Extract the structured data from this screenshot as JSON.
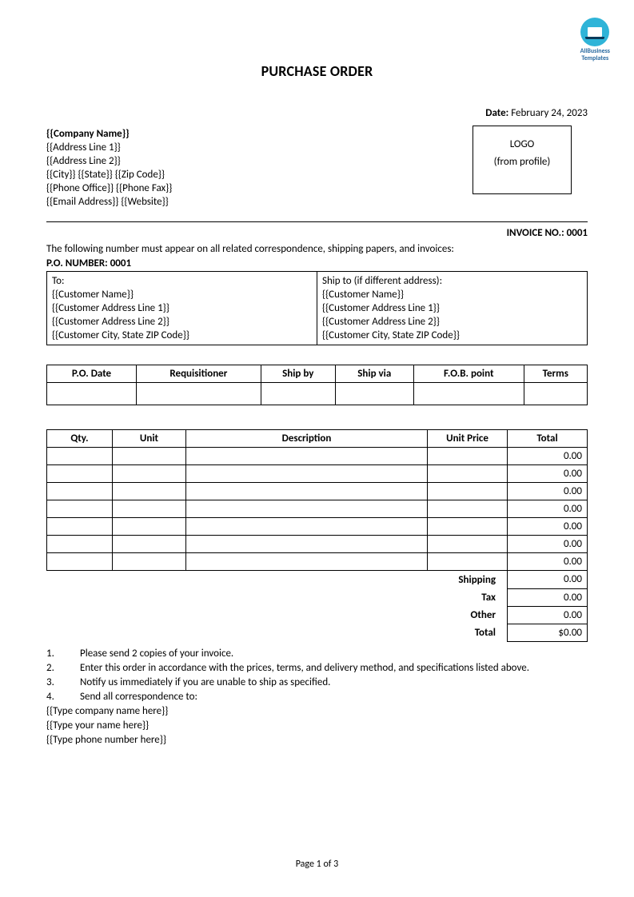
{
  "brand": {
    "line1": "AllBusiness",
    "line2": "Templates"
  },
  "title": "PURCHASE ORDER",
  "date": {
    "label": "Date:",
    "value": "February 24, 2023"
  },
  "company": {
    "name": "{{Company Name}}",
    "addr1": "{{Address Line 1}}",
    "addr2": "{{Address Line 2}}",
    "city_state_zip": "{{City}} {{State}} {{Zip Code}}",
    "phones": "{{Phone Office}} {{Phone Fax}}",
    "email_web": "{{Email Address}} {{Website}}"
  },
  "logo_box": {
    "line1": "LOGO",
    "line2": "(from profile)"
  },
  "invoice_no": {
    "label": "INVOICE NO.: 0001"
  },
  "po_instruction": "The following number must appear on all related correspondence, shipping papers, and invoices:",
  "po_number": "P.O. NUMBER: 0001",
  "to_block": {
    "header": "To:",
    "name": "{{Customer Name}}",
    "addr1": "{{Customer Address Line 1}}",
    "addr2": "{{Customer Address Line 2}}",
    "csz": "{{Customer City, State ZIP Code}}"
  },
  "ship_block": {
    "header": "Ship to (if different address):",
    "name": "{{Customer Name}}",
    "addr1": "{{Customer Address Line 1}}",
    "addr2": "{{Customer Address Line 2}}",
    "csz": "{{Customer City, State ZIP Code}}"
  },
  "meta_headers": [
    "P.O. Date",
    "Requisitioner",
    "Ship by",
    "Ship via",
    "F.O.B. point",
    "Terms"
  ],
  "items_headers": [
    "Qty.",
    "Unit",
    "Description",
    "Unit Price",
    "Total"
  ],
  "items_rows": [
    {
      "total": "0.00"
    },
    {
      "total": "0.00"
    },
    {
      "total": "0.00"
    },
    {
      "total": "0.00"
    },
    {
      "total": "0.00"
    },
    {
      "total": "0.00"
    },
    {
      "total": "0.00"
    }
  ],
  "totals": {
    "shipping": {
      "label": "Shipping",
      "value": "0.00"
    },
    "tax": {
      "label": "Tax",
      "value": "0.00"
    },
    "other": {
      "label": "Other",
      "value": "0.00"
    },
    "total": {
      "label": "Total",
      "value": "$0.00"
    }
  },
  "notes": [
    {
      "n": "1.",
      "t": "Please send 2 copies of your invoice."
    },
    {
      "n": "2.",
      "t": "Enter this order in accordance with the prices, terms, and delivery method, and specifications listed above."
    },
    {
      "n": "3.",
      "t": "Notify us immediately if you are unable to ship as specified."
    },
    {
      "n": "4.",
      "t": "Send all correspondence to:"
    }
  ],
  "correspondence": {
    "company": "{{Type company name here}}",
    "name": "{{Type your name here}}",
    "phone": "{{Type phone number here}}"
  },
  "footer": "Page 1 of 3"
}
